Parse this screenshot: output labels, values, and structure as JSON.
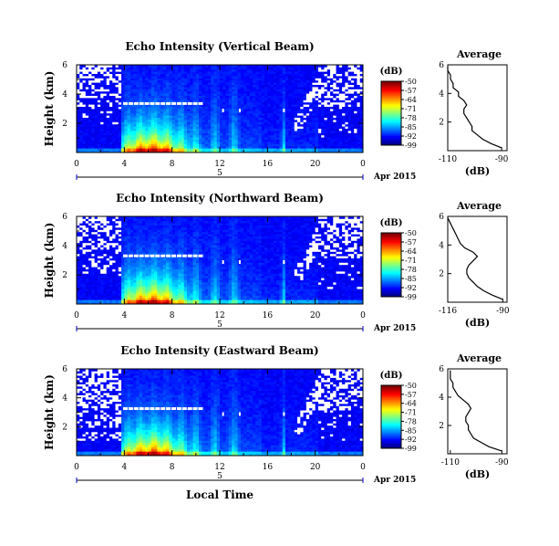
{
  "figure": {
    "bottom_xlabel": "Local Time",
    "date_label": "Apr 2015",
    "colorbar_unit": "(dB)",
    "profile_title": "Average",
    "profile_xlabel": "(dB)",
    "ylabel": "Height (km)"
  },
  "chart_data": [
    {
      "type": "heatmap",
      "title": "Echo Intensity (Vertical Beam)",
      "ylabel": "Height (km)",
      "xlabel": "",
      "xlim": [
        0,
        24
      ],
      "ylim": [
        0,
        6
      ],
      "x_ticks": [
        "0",
        "4",
        "8",
        "12",
        "16",
        "20",
        "0"
      ],
      "y_ticks": [
        "2",
        "4",
        "6"
      ],
      "date_tick": "5",
      "colorbar": {
        "unit": "(dB)",
        "ticks": [
          "-50",
          "-57",
          "-64",
          "-71",
          "-78",
          "-85",
          "-92",
          "-99"
        ],
        "range": [
          -99,
          -50
        ]
      },
      "profile": {
        "title": "Average",
        "xlabel": "(dB)",
        "x_ticks": [
          "-110",
          "-90"
        ],
        "xlim": [
          -110,
          -88
        ],
        "y_ticks": [
          "2",
          "4",
          "6"
        ],
        "ylim": [
          0,
          6
        ],
        "heights": [
          0.2,
          0.5,
          0.8,
          1.1,
          1.4,
          1.7,
          2.0,
          2.3,
          2.6,
          2.9,
          3.2,
          3.5,
          3.8,
          4.1,
          4.4,
          4.7,
          5.0,
          5.3,
          5.6,
          5.9
        ],
        "values": [
          -90,
          -94,
          -97,
          -99,
          -101,
          -101,
          -102,
          -103,
          -104,
          -104,
          -103,
          -104,
          -106,
          -106,
          -108,
          -108,
          -109,
          -109,
          -110,
          -110
        ]
      }
    },
    {
      "type": "heatmap",
      "title": "Echo Intensity (Northward Beam)",
      "ylabel": "Height (km)",
      "xlabel": "",
      "xlim": [
        0,
        24
      ],
      "ylim": [
        0,
        6
      ],
      "x_ticks": [
        "0",
        "4",
        "8",
        "12",
        "16",
        "20",
        "0"
      ],
      "y_ticks": [
        "2",
        "4",
        "6"
      ],
      "date_tick": "5",
      "colorbar": {
        "unit": "(dB)",
        "ticks": [
          "-50",
          "-57",
          "-64",
          "-71",
          "-78",
          "-85",
          "-92",
          "-99"
        ],
        "range": [
          -99,
          -50
        ]
      },
      "profile": {
        "title": "Average",
        "xlabel": "(dB)",
        "x_ticks": [
          "-116",
          "-90"
        ],
        "xlim": [
          -116,
          -88
        ],
        "y_ticks": [
          "2",
          "4",
          "6"
        ],
        "ylim": [
          0,
          6
        ],
        "heights": [
          0.2,
          0.5,
          0.8,
          1.1,
          1.4,
          1.7,
          2.0,
          2.3,
          2.6,
          2.9,
          3.2,
          3.5,
          3.8,
          4.1,
          4.4,
          4.7,
          5.0,
          5.3,
          5.6,
          5.9
        ],
        "values": [
          -90,
          -95,
          -99,
          -102,
          -104,
          -106,
          -107,
          -107,
          -106,
          -104,
          -102,
          -104,
          -108,
          -110,
          -111,
          -112,
          -113,
          -114,
          -115,
          -116
        ]
      }
    },
    {
      "type": "heatmap",
      "title": "Echo Intensity (Eastward Beam)",
      "ylabel": "Height (km)",
      "xlabel": "Local Time",
      "xlim": [
        0,
        24
      ],
      "ylim": [
        0,
        6
      ],
      "x_ticks": [
        "0",
        "4",
        "8",
        "12",
        "16",
        "20",
        "0"
      ],
      "y_ticks": [
        "2",
        "4",
        "6"
      ],
      "date_tick": "5",
      "colorbar": {
        "unit": "(dB)",
        "ticks": [
          "-50",
          "-57",
          "-64",
          "-71",
          "-78",
          "-85",
          "-92",
          "-99"
        ],
        "range": [
          -99,
          -50
        ]
      },
      "profile": {
        "title": "Average",
        "xlabel": "(dB)",
        "x_ticks": [
          "-110",
          "-90"
        ],
        "xlim": [
          -111,
          -88
        ],
        "y_ticks": [
          "2",
          "4",
          "6"
        ],
        "ylim": [
          0,
          6
        ],
        "heights": [
          0.2,
          0.5,
          0.8,
          1.1,
          1.4,
          1.7,
          2.0,
          2.3,
          2.6,
          2.9,
          3.2,
          3.5,
          3.8,
          4.1,
          4.4,
          4.7,
          5.0,
          5.3,
          5.6,
          5.9
        ],
        "values": [
          -90,
          -95,
          -98,
          -101,
          -102,
          -103,
          -103,
          -104,
          -104,
          -103,
          -102,
          -103,
          -105,
          -107,
          -108,
          -109,
          -109,
          -110,
          -110,
          -110
        ]
      }
    }
  ]
}
